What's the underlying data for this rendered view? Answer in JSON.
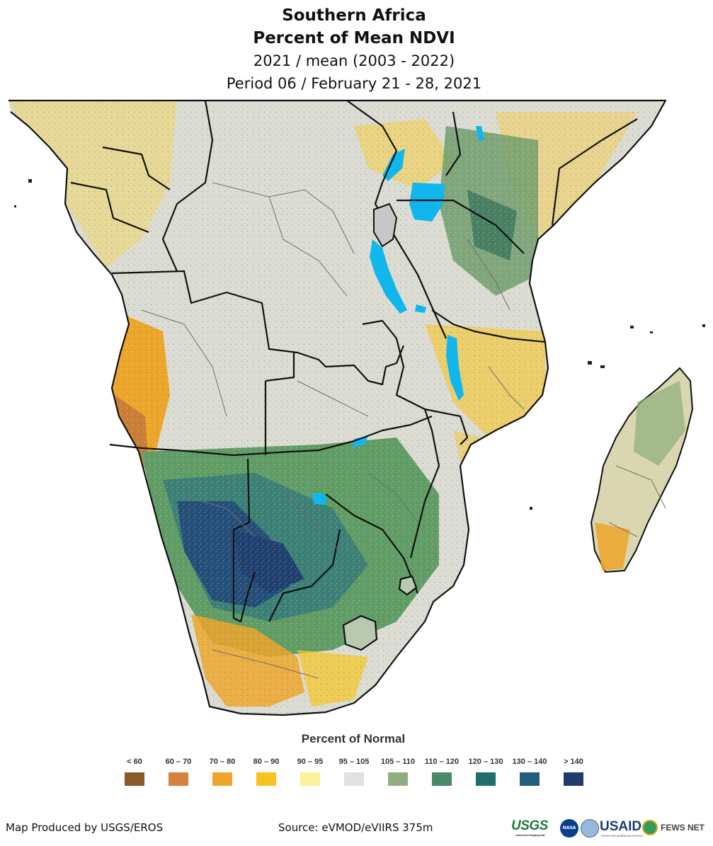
{
  "header": {
    "region": "Southern Africa",
    "product": "Percent of Mean NDVI",
    "comparison": "2021 / mean (2003 - 2022)",
    "period": "Period 06 / February 21 - 28, 2021"
  },
  "legend": {
    "title": "Percent of Normal",
    "classes": [
      {
        "label": "< 60",
        "color": "#8b5a2b"
      },
      {
        "label": "60 – 70",
        "color": "#d4823f"
      },
      {
        "label": "70 – 80",
        "color": "#eda52c"
      },
      {
        "label": "80 – 90",
        "color": "#f5c41e"
      },
      {
        "label": "90 – 95",
        "color": "#fbf19a"
      },
      {
        "label": "95 – 105",
        "color": "#e1e1e1"
      },
      {
        "label": "105 – 110",
        "color": "#93ae7e"
      },
      {
        "label": "110 – 120",
        "color": "#4a8a68"
      },
      {
        "label": "120 – 130",
        "color": "#1f706d"
      },
      {
        "label": "130 – 140",
        "color": "#245f7d"
      },
      {
        "label": "> 140",
        "color": "#223c6a"
      }
    ]
  },
  "map": {
    "water_color": "#11b7ec",
    "border_color": "#111111",
    "admin_color": "#6f6f6f",
    "icons": [
      "lake-shape",
      "country-border",
      "ndvi-patch"
    ]
  },
  "footer": {
    "producer": "Map Produced by USGS/EROS",
    "source": "Source: eVMOD/eVIIRS 375m"
  },
  "logos": {
    "usgs": "USGS",
    "usgs_tagline": "science for a changing world",
    "nasa": "NASA",
    "usaid": "USAID",
    "usaid_tagline": "FROM THE AMERICAN PEOPLE",
    "fews": "FEWS NET"
  }
}
